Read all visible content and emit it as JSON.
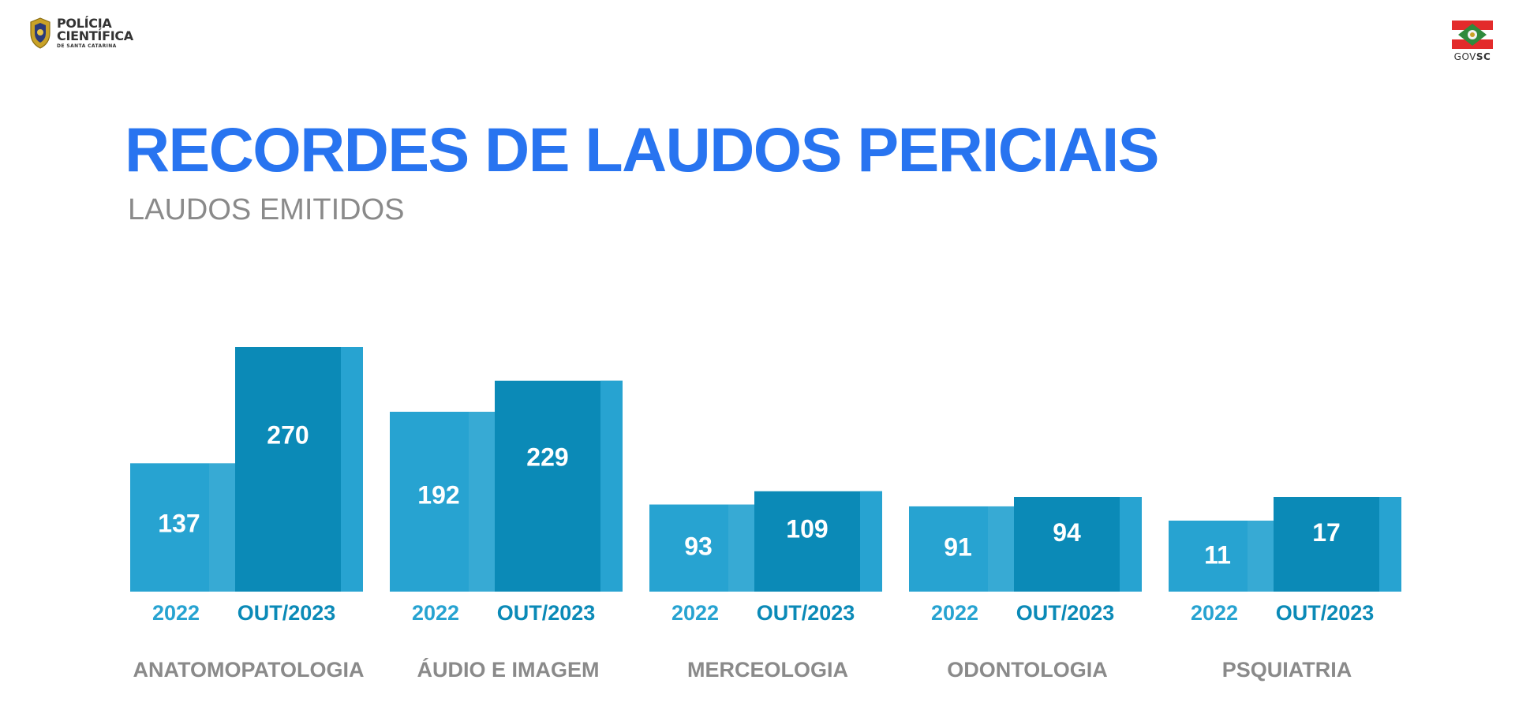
{
  "header": {
    "org_logo": {
      "icon": "police-badge-icon",
      "line1": "POLÍCIA",
      "line2": "CIENTÍFICA",
      "line3": "DE SANTA CATARINA"
    },
    "gov_logo": {
      "icon": "santa-catarina-flag-icon",
      "text_light": "GOV",
      "text_bold": "SC"
    }
  },
  "title": "RECORDES DE LAUDOS PERICIAIS",
  "subtitle": "LAUDOS EMITIDOS",
  "colors": {
    "title": "#2874f0",
    "bar_2022": "#27a3d1",
    "bar_2023": "#0b8ab7",
    "label_2022": "#27a3d1",
    "label_2023": "#0b8ab7",
    "category": "#8a8a8a"
  },
  "chart_data": {
    "type": "bar",
    "title": "RECORDES DE LAUDOS PERICIAIS",
    "subtitle": "LAUDOS EMITIDOS",
    "categories": [
      "ANATOMOPATOLOGIA",
      "ÁUDIO E IMAGEM",
      "MERCEOLOGIA",
      "ODONTOLOGIA",
      "PSQUIATRIA"
    ],
    "series": [
      {
        "name": "2022",
        "values": [
          137,
          192,
          93,
          91,
          11
        ]
      },
      {
        "name": "OUT/2023",
        "values": [
          270,
          229,
          109,
          94,
          17
        ]
      }
    ],
    "grid": false
  }
}
